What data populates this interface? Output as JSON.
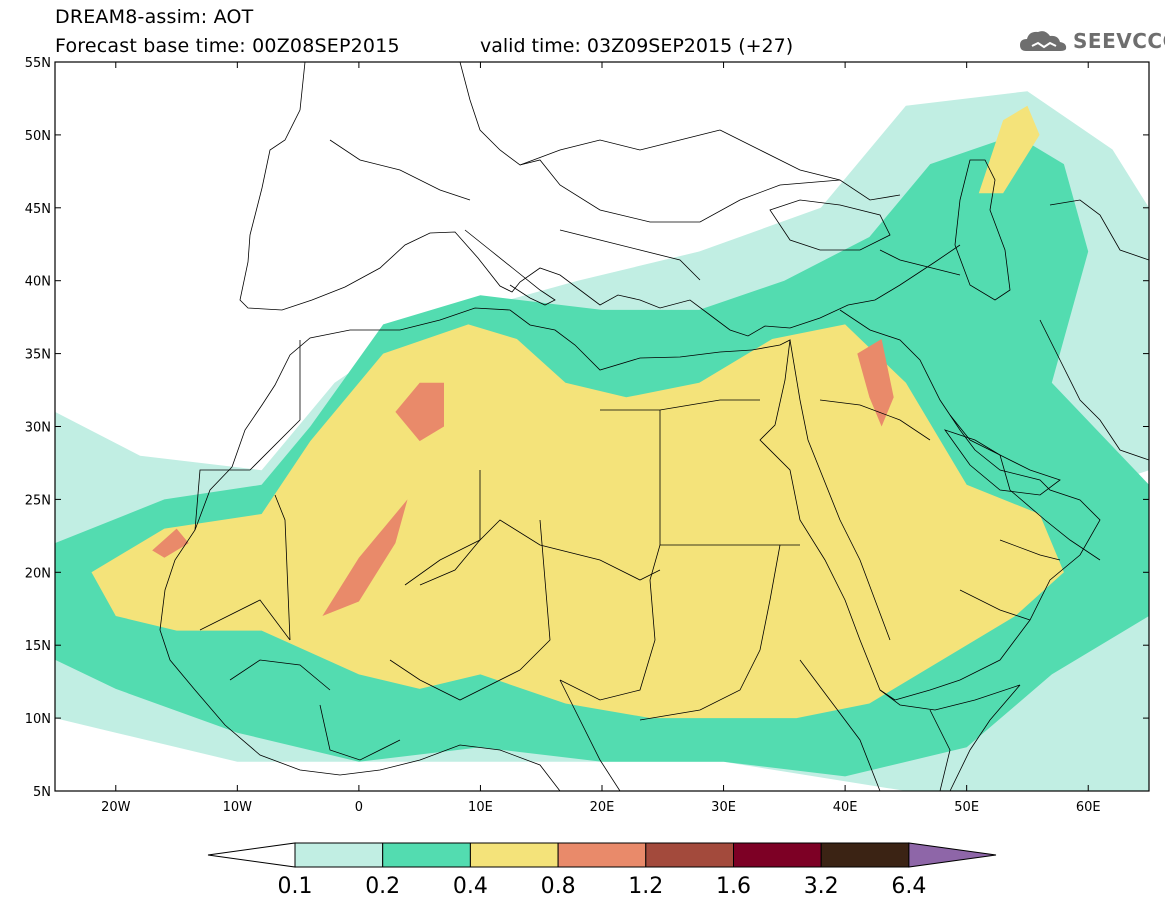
{
  "header": {
    "title": "DREAM8-assim: AOT",
    "base_time": "Forecast base time: 00Z08SEP2015",
    "valid_time": "valid time: 03Z09SEP2015 (+27)"
  },
  "logo": {
    "text": "SEEVCCC",
    "icon": "cloud-icon",
    "color": "#6e6e6e"
  },
  "map": {
    "lon_range": [
      -25,
      65
    ],
    "lat_range": [
      5,
      55
    ],
    "lat_ticks": [
      {
        "value": 55,
        "label": "55N"
      },
      {
        "value": 50,
        "label": "50N"
      },
      {
        "value": 45,
        "label": "45N"
      },
      {
        "value": 40,
        "label": "40N"
      },
      {
        "value": 35,
        "label": "35N"
      },
      {
        "value": 30,
        "label": "30N"
      },
      {
        "value": 25,
        "label": "25N"
      },
      {
        "value": 20,
        "label": "20N"
      },
      {
        "value": 15,
        "label": "15N"
      },
      {
        "value": 10,
        "label": "10N"
      },
      {
        "value": 5,
        "label": "5N"
      }
    ],
    "lon_ticks": [
      {
        "value": -20,
        "label": "20W"
      },
      {
        "value": -10,
        "label": "10W"
      },
      {
        "value": 0,
        "label": "0"
      },
      {
        "value": 10,
        "label": "10E"
      },
      {
        "value": 20,
        "label": "20E"
      },
      {
        "value": 30,
        "label": "30E"
      },
      {
        "value": 40,
        "label": "40E"
      },
      {
        "value": 50,
        "label": "50E"
      },
      {
        "value": 60,
        "label": "60E"
      }
    ],
    "fields": [
      {
        "level": 1,
        "points": [
          [
            -25,
            31
          ],
          [
            -18,
            28
          ],
          [
            -8,
            27
          ],
          [
            -2,
            33
          ],
          [
            5,
            37
          ],
          [
            18,
            40
          ],
          [
            28,
            42
          ],
          [
            38,
            45
          ],
          [
            45,
            52
          ],
          [
            55,
            53
          ],
          [
            62,
            49
          ],
          [
            65,
            45
          ],
          [
            65,
            27
          ],
          [
            58,
            25
          ],
          [
            65,
            22
          ],
          [
            65,
            5
          ],
          [
            45,
            5
          ],
          [
            30,
            7
          ],
          [
            15,
            7
          ],
          [
            5,
            7
          ],
          [
            -10,
            7
          ],
          [
            -20,
            9
          ],
          [
            -25,
            10
          ]
        ]
      },
      {
        "level": 2,
        "points": [
          [
            -25,
            22
          ],
          [
            -16,
            25
          ],
          [
            -8,
            26
          ],
          [
            -4,
            30
          ],
          [
            2,
            37
          ],
          [
            10,
            39
          ],
          [
            20,
            38
          ],
          [
            28,
            38
          ],
          [
            35,
            40
          ],
          [
            42,
            43
          ],
          [
            47,
            48
          ],
          [
            54,
            50
          ],
          [
            58,
            48
          ],
          [
            60,
            42
          ],
          [
            57,
            33
          ],
          [
            65,
            26
          ],
          [
            65,
            17
          ],
          [
            57,
            13
          ],
          [
            50,
            8
          ],
          [
            40,
            6
          ],
          [
            30,
            7
          ],
          [
            20,
            7
          ],
          [
            10,
            8
          ],
          [
            0,
            7
          ],
          [
            -10,
            9
          ],
          [
            -20,
            12
          ],
          [
            -25,
            14
          ]
        ]
      },
      {
        "level": 3,
        "points": [
          [
            -22,
            20
          ],
          [
            -16,
            23
          ],
          [
            -8,
            24
          ],
          [
            -4,
            29
          ],
          [
            2,
            35
          ],
          [
            9,
            37
          ],
          [
            13,
            36
          ],
          [
            17,
            33
          ],
          [
            22,
            32
          ],
          [
            28,
            33
          ],
          [
            34,
            36
          ],
          [
            40,
            37
          ],
          [
            45,
            33
          ],
          [
            50,
            26
          ],
          [
            56,
            24
          ],
          [
            58,
            20
          ],
          [
            54,
            17
          ],
          [
            48,
            14
          ],
          [
            42,
            11
          ],
          [
            36,
            10
          ],
          [
            30,
            10
          ],
          [
            24,
            10
          ],
          [
            17,
            11
          ],
          [
            10,
            13
          ],
          [
            5,
            12
          ],
          [
            0,
            13
          ],
          [
            -8,
            16
          ],
          [
            -15,
            16
          ],
          [
            -20,
            17
          ]
        ]
      },
      {
        "level": 3,
        "points": [
          [
            51,
            46
          ],
          [
            53,
            51
          ],
          [
            55,
            52
          ],
          [
            56,
            50
          ],
          [
            53,
            46
          ]
        ]
      },
      {
        "level": 4,
        "points": [
          [
            3,
            31
          ],
          [
            5,
            33
          ],
          [
            7,
            33
          ],
          [
            7,
            30
          ],
          [
            5,
            29
          ]
        ]
      },
      {
        "level": 4,
        "points": [
          [
            -3,
            17
          ],
          [
            0,
            21
          ],
          [
            2,
            23
          ],
          [
            4,
            25
          ],
          [
            3,
            22
          ],
          [
            0,
            18
          ]
        ]
      },
      {
        "level": 4,
        "points": [
          [
            -17,
            21.5
          ],
          [
            -15,
            23
          ],
          [
            -14,
            22
          ],
          [
            -16,
            21
          ]
        ]
      },
      {
        "level": 4,
        "points": [
          [
            41,
            35
          ],
          [
            43,
            36
          ],
          [
            44,
            32
          ],
          [
            43,
            30
          ],
          [
            42,
            32
          ]
        ]
      }
    ],
    "field_colors": [
      "#c1eee3",
      "#53dcb0",
      "#f4e37a",
      "#e98a6a"
    ]
  },
  "colorbar": {
    "colors": [
      "#ffffff",
      "#c1eee3",
      "#53dcb0",
      "#f4e37a",
      "#e98a6a",
      "#a34a3c",
      "#7d0025",
      "#3b2314",
      "#8e66a8"
    ],
    "labels": [
      "0.1",
      "0.2",
      "0.4",
      "0.8",
      "1.2",
      "1.6",
      "3.2",
      "6.4"
    ]
  }
}
